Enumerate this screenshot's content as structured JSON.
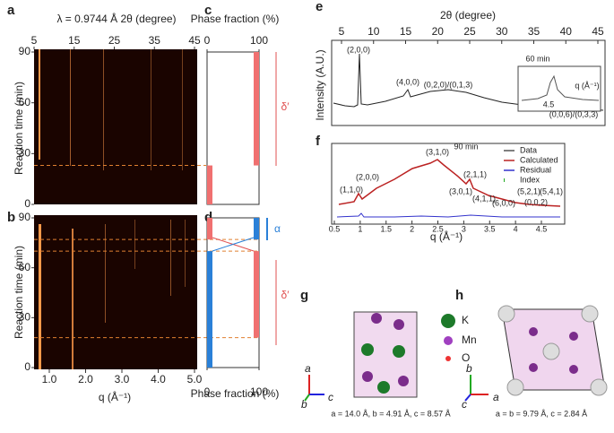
{
  "panels": {
    "a": {
      "label": "a",
      "top_axis_label": "λ = 0.9744 Å 2θ (degree)",
      "top_ticks": [
        5,
        15,
        25,
        35,
        45
      ],
      "ylabel": "Reaction time (min)",
      "yticks": [
        0,
        30,
        60,
        90
      ],
      "transition_min": 23
    },
    "b": {
      "label": "b",
      "ylabel": "Reaction time (min)",
      "yticks": [
        0,
        30,
        60,
        90
      ],
      "xlabel": "q (Å⁻¹)",
      "xticks": [
        {
          "value": 1,
          "label": "1.0"
        },
        {
          "value": 2,
          "label": "2.0"
        },
        {
          "value": 3,
          "label": "3.0"
        },
        {
          "value": 4,
          "label": "4.0"
        },
        {
          "value": 5,
          "label": "5.0"
        }
      ],
      "transitions_min": [
        77,
        70,
        18
      ]
    },
    "c": {
      "label": "c",
      "axis_label": "Phase fraction (%)",
      "ticks": [
        0,
        100
      ],
      "phase": "δ′",
      "segments": [
        {
          "fraction": 100,
          "from": 23,
          "to": 90
        },
        {
          "fraction": 0,
          "from": 0,
          "to": 23
        }
      ]
    },
    "d": {
      "label": "d",
      "axis_label": "Phase fraction (%)",
      "ticks": [
        0,
        100
      ],
      "phase_alpha": "α",
      "phase_delta": "δ′",
      "alpha_segments": [
        {
          "fraction": 0,
          "from": 0,
          "to": 70
        },
        {
          "fraction": 100,
          "from": 77,
          "to": 90
        }
      ],
      "delta_segments": [
        {
          "fraction": 100,
          "from": 18,
          "to": 70
        },
        {
          "fraction": 0,
          "from": 77,
          "to": 90
        }
      ]
    },
    "e": {
      "label": "e",
      "xlabel": "2θ (degree)",
      "xticks": [
        5,
        10,
        15,
        20,
        25,
        30,
        35,
        40,
        45
      ],
      "ylabel": "Intensity (A.U.)",
      "time": "60 min",
      "peaks": [
        "(2,0,0)",
        "(4,0,0)",
        "(0,2,0)/(0,1,3)",
        "(0,0,6)/(0,3,3)"
      ],
      "inset_tick": 4.5,
      "inset_label": "q (Å⁻¹)"
    },
    "f": {
      "label": "f",
      "xlabel": "q (Å⁻¹)",
      "xticks": [
        0.5,
        1.0,
        1.5,
        2.0,
        2.5,
        3.0,
        3.5,
        4.0,
        4.5
      ],
      "time": "90 min",
      "legend": [
        "Data",
        "Calculated",
        "Residual",
        "Index"
      ],
      "peaks": [
        "(1,1,0)",
        "(2,0,0)",
        "(3,1,0)",
        "(2,1,1)",
        "(3,0,1)",
        "(4,1,1)",
        "(6,0,0)",
        "(5,2,1)",
        "(0,0,2)",
        "(5,4,1)"
      ]
    },
    "g": {
      "label": "g",
      "legend": [
        "K",
        "Mn",
        "O"
      ],
      "axes": [
        "a",
        "b",
        "c"
      ],
      "cell": "a = 14.0 Å, b = 4.91 Å, c = 8.57 Å"
    },
    "h": {
      "label": "h",
      "axes": [
        "b",
        "c",
        "a"
      ],
      "cell": "a = b = 9.79 Å, c = 2.84 Å"
    }
  }
}
